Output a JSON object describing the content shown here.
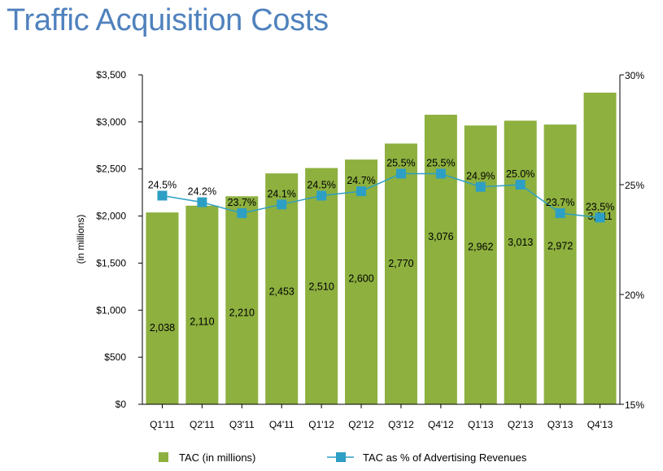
{
  "title": "Traffic Acquisition Costs",
  "chart_data": {
    "type": "bar+line",
    "title": "Traffic Acquisition Costs",
    "categories": [
      "Q1'11",
      "Q2'11",
      "Q3'11",
      "Q4'11",
      "Q1'12",
      "Q2'12",
      "Q3'12",
      "Q4'12",
      "Q1'13",
      "Q2'13",
      "Q3'13",
      "Q4'13"
    ],
    "series": [
      {
        "name": "TAC (in millions)",
        "type": "bar",
        "axis": "left",
        "color": "#8db03f",
        "values": [
          2038,
          2110,
          2210,
          2453,
          2510,
          2600,
          2770,
          3076,
          2962,
          3013,
          2972,
          3311
        ],
        "labels": [
          "2,038",
          "2,110",
          "2,210",
          "2,453",
          "2,510",
          "2,600",
          "2,770",
          "3,076",
          "2,962",
          "3,013",
          "2,972",
          "3,311"
        ]
      },
      {
        "name": "TAC as % of Advertising Revenues",
        "type": "line",
        "axis": "right",
        "color": "#2e9fc4",
        "values": [
          24.5,
          24.2,
          23.7,
          24.1,
          24.5,
          24.7,
          25.5,
          25.5,
          24.9,
          25.0,
          23.7,
          23.5
        ],
        "labels": [
          "24.5%",
          "24.2%",
          "23.7%",
          "24.1%",
          "24.5%",
          "24.7%",
          "25.5%",
          "25.5%",
          "24.9%",
          "25.0%",
          "23.7%",
          "23.5%"
        ]
      }
    ],
    "ylabel": "(in millions)",
    "xlabel": "",
    "ylim": [
      0,
      3500
    ],
    "yticks": [
      0,
      500,
      1000,
      1500,
      2000,
      2500,
      3000,
      3500
    ],
    "ytick_labels": [
      "$0",
      "$500",
      "$1,000",
      "$1,500",
      "$2,000",
      "$2,500",
      "$3,000",
      "$3,500"
    ],
    "y2lim": [
      15,
      30
    ],
    "y2ticks": [
      15,
      20,
      25,
      30
    ],
    "y2tick_labels": [
      "15%",
      "20%",
      "25%",
      "30%"
    ],
    "grid": false,
    "legend": {
      "position": "bottom",
      "entries": [
        "TAC (in millions)",
        "TAC as % of Advertising Revenues"
      ]
    }
  }
}
